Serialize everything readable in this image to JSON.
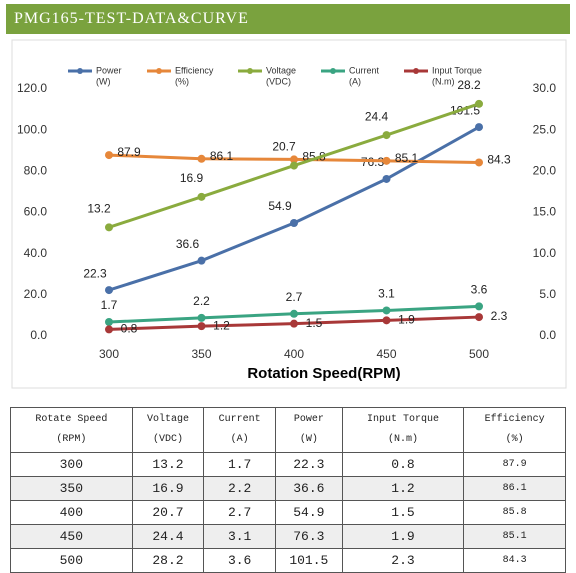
{
  "header": {
    "title": "PMG165-TEST-DATA&CURVE"
  },
  "chart_data": {
    "type": "line",
    "x_label": "Rotation Speed(RPM)",
    "categories": [
      "300",
      "350",
      "400",
      "450",
      "500"
    ],
    "ylim": [
      0,
      120
    ],
    "yticks": [
      {
        "value": 0,
        "label": "0.0"
      },
      {
        "value": 20,
        "label": "20.0"
      },
      {
        "value": 40,
        "label": "40.0"
      },
      {
        "value": 60,
        "label": "60.0"
      },
      {
        "value": 80,
        "label": "80.0"
      },
      {
        "value": 100,
        "label": "100.0"
      },
      {
        "value": 120,
        "label": "120.0"
      }
    ],
    "y2lim": [
      0,
      30
    ],
    "y2ticks": [
      {
        "value": 0,
        "label": "0.0"
      },
      {
        "value": 5,
        "label": "5.0"
      },
      {
        "value": 10,
        "label": "10.0"
      },
      {
        "value": 15,
        "label": "15.0"
      },
      {
        "value": 20,
        "label": "20.0"
      },
      {
        "value": 25,
        "label": "25.0"
      },
      {
        "value": 30,
        "label": "30.0"
      }
    ],
    "grid": false,
    "legend": "top",
    "series": [
      {
        "name": "Power",
        "unit": "(W)",
        "color": "#4a70a8",
        "values": [
          22.3,
          36.6,
          54.9,
          76.3,
          101.5
        ]
      },
      {
        "name": "Efficiency",
        "unit": "(%)",
        "color": "#e6873a",
        "values": [
          87.9,
          86.1,
          85.8,
          85.1,
          84.3
        ]
      },
      {
        "name": "Voltage",
        "unit": "(VDC)",
        "color": "#8aab3e",
        "axis": "y2",
        "values": [
          13.2,
          16.9,
          20.7,
          24.4,
          28.2
        ]
      },
      {
        "name": "Current",
        "unit": "(A)",
        "color": "#3aa482",
        "axis": "y2",
        "values": [
          1.7,
          2.2,
          2.7,
          3.1,
          3.6
        ]
      },
      {
        "name": "Input Torque",
        "unit": "(N.m)",
        "color": "#a83838",
        "axis": "y2",
        "values": [
          0.8,
          1.2,
          1.5,
          1.9,
          2.3
        ]
      }
    ]
  },
  "table": {
    "header": [
      [
        "Rotate Speed",
        "(RPM)"
      ],
      [
        "Voltage",
        "(VDC)"
      ],
      [
        "Current",
        "(A)"
      ],
      [
        "Power",
        "(W)"
      ],
      [
        "Input Torque",
        "(N.m)"
      ],
      [
        "Efficiency",
        "(%)"
      ]
    ],
    "rows": [
      [
        300,
        13.2,
        1.7,
        22.3,
        0.8,
        87.9
      ],
      [
        350,
        16.9,
        2.2,
        36.6,
        1.2,
        86.1
      ],
      [
        400,
        20.7,
        2.7,
        54.9,
        1.5,
        85.8
      ],
      [
        450,
        24.4,
        3.1,
        76.3,
        1.9,
        85.1
      ],
      [
        500,
        28.2,
        3.6,
        101.5,
        2.3,
        84.3
      ]
    ]
  }
}
